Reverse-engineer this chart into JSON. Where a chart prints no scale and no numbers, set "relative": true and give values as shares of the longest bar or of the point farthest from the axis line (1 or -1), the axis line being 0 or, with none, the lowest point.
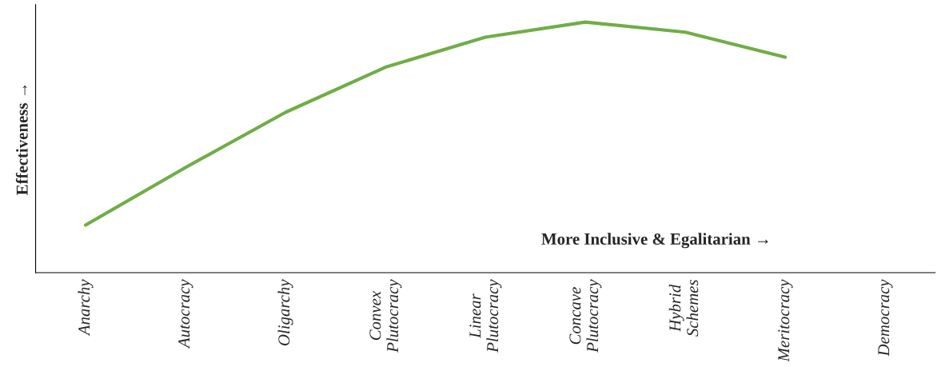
{
  "chart_data": {
    "type": "line",
    "relative": true,
    "ylabel": "Effectiveness →",
    "categories": [
      "Anarchy",
      "Autocracy",
      "Oligarchy",
      "Convex\nPlutocracy",
      "Linear\nPlutocracy",
      "Concave\nPlutocracy",
      "Hybrid\nSchemes",
      "Meritocracy",
      "Democracy"
    ],
    "series": [
      {
        "color": "#70ad47",
        "values": [
          0.19,
          0.42,
          0.64,
          0.82,
          0.94,
          1.0,
          0.96,
          0.86,
          null
        ]
      }
    ],
    "annotations": [
      "More Inclusive & Egalitarian →"
    ],
    "grid": false,
    "legend": false,
    "marker": "none",
    "line_style": "solid"
  }
}
